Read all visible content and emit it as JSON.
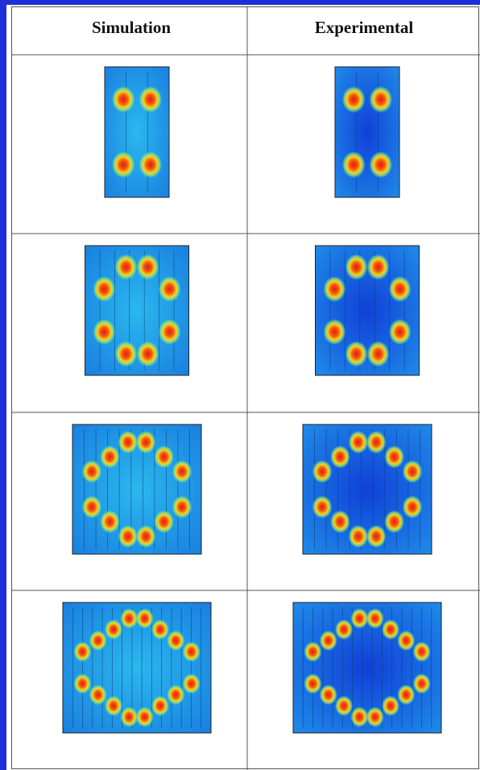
{
  "table": {
    "headers": [
      "Simulation",
      "Experimental"
    ]
  }
}
